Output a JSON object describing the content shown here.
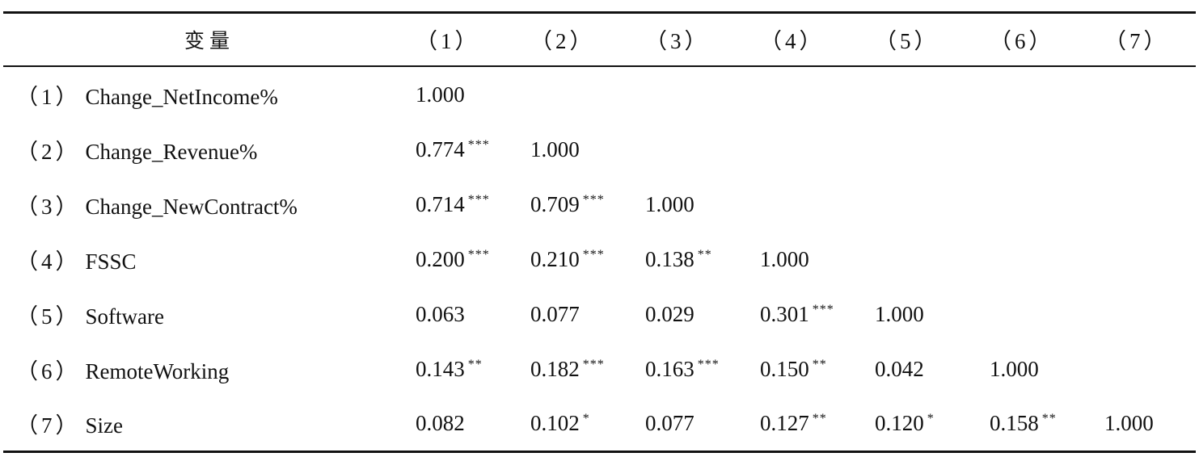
{
  "table": {
    "header": {
      "variable": "变量",
      "columns": [
        "（1）",
        "（2）",
        "（3）",
        "（4）",
        "（5）",
        "（6）",
        "（7）"
      ]
    },
    "rows": [
      {
        "index": "（1）",
        "name": "Change_NetIncome%",
        "cells": [
          {
            "value": "1.000",
            "stars": ""
          },
          {
            "value": "",
            "stars": ""
          },
          {
            "value": "",
            "stars": ""
          },
          {
            "value": "",
            "stars": ""
          },
          {
            "value": "",
            "stars": ""
          },
          {
            "value": "",
            "stars": ""
          },
          {
            "value": "",
            "stars": ""
          }
        ]
      },
      {
        "index": "（2）",
        "name": "Change_Revenue%",
        "cells": [
          {
            "value": "0.774",
            "stars": "***"
          },
          {
            "value": "1.000",
            "stars": ""
          },
          {
            "value": "",
            "stars": ""
          },
          {
            "value": "",
            "stars": ""
          },
          {
            "value": "",
            "stars": ""
          },
          {
            "value": "",
            "stars": ""
          },
          {
            "value": "",
            "stars": ""
          }
        ]
      },
      {
        "index": "（3）",
        "name": "Change_NewContract%",
        "cells": [
          {
            "value": "0.714",
            "stars": "***"
          },
          {
            "value": "0.709",
            "stars": "***"
          },
          {
            "value": "1.000",
            "stars": ""
          },
          {
            "value": "",
            "stars": ""
          },
          {
            "value": "",
            "stars": ""
          },
          {
            "value": "",
            "stars": ""
          },
          {
            "value": "",
            "stars": ""
          }
        ]
      },
      {
        "index": "（4）",
        "name": "FSSC",
        "cells": [
          {
            "value": "0.200",
            "stars": "***"
          },
          {
            "value": "0.210",
            "stars": "***"
          },
          {
            "value": "0.138",
            "stars": "**"
          },
          {
            "value": "1.000",
            "stars": ""
          },
          {
            "value": "",
            "stars": ""
          },
          {
            "value": "",
            "stars": ""
          },
          {
            "value": "",
            "stars": ""
          }
        ]
      },
      {
        "index": "（5）",
        "name": "Software",
        "cells": [
          {
            "value": "0.063",
            "stars": ""
          },
          {
            "value": "0.077",
            "stars": ""
          },
          {
            "value": "0.029",
            "stars": ""
          },
          {
            "value": "0.301",
            "stars": "***"
          },
          {
            "value": "1.000",
            "stars": ""
          },
          {
            "value": "",
            "stars": ""
          },
          {
            "value": "",
            "stars": ""
          }
        ]
      },
      {
        "index": "（6）",
        "name": "RemoteWorking",
        "cells": [
          {
            "value": "0.143",
            "stars": "**"
          },
          {
            "value": "0.182",
            "stars": "***"
          },
          {
            "value": "0.163",
            "stars": "***"
          },
          {
            "value": "0.150",
            "stars": "**"
          },
          {
            "value": "0.042",
            "stars": ""
          },
          {
            "value": "1.000",
            "stars": ""
          },
          {
            "value": "",
            "stars": ""
          }
        ]
      },
      {
        "index": "（7）",
        "name": "Size",
        "cells": [
          {
            "value": "0.082",
            "stars": ""
          },
          {
            "value": "0.102",
            "stars": "*"
          },
          {
            "value": "0.077",
            "stars": ""
          },
          {
            "value": "0.127",
            "stars": "**"
          },
          {
            "value": "0.120",
            "stars": "*"
          },
          {
            "value": "0.158",
            "stars": "**"
          },
          {
            "value": "1.000",
            "stars": ""
          }
        ]
      }
    ]
  }
}
